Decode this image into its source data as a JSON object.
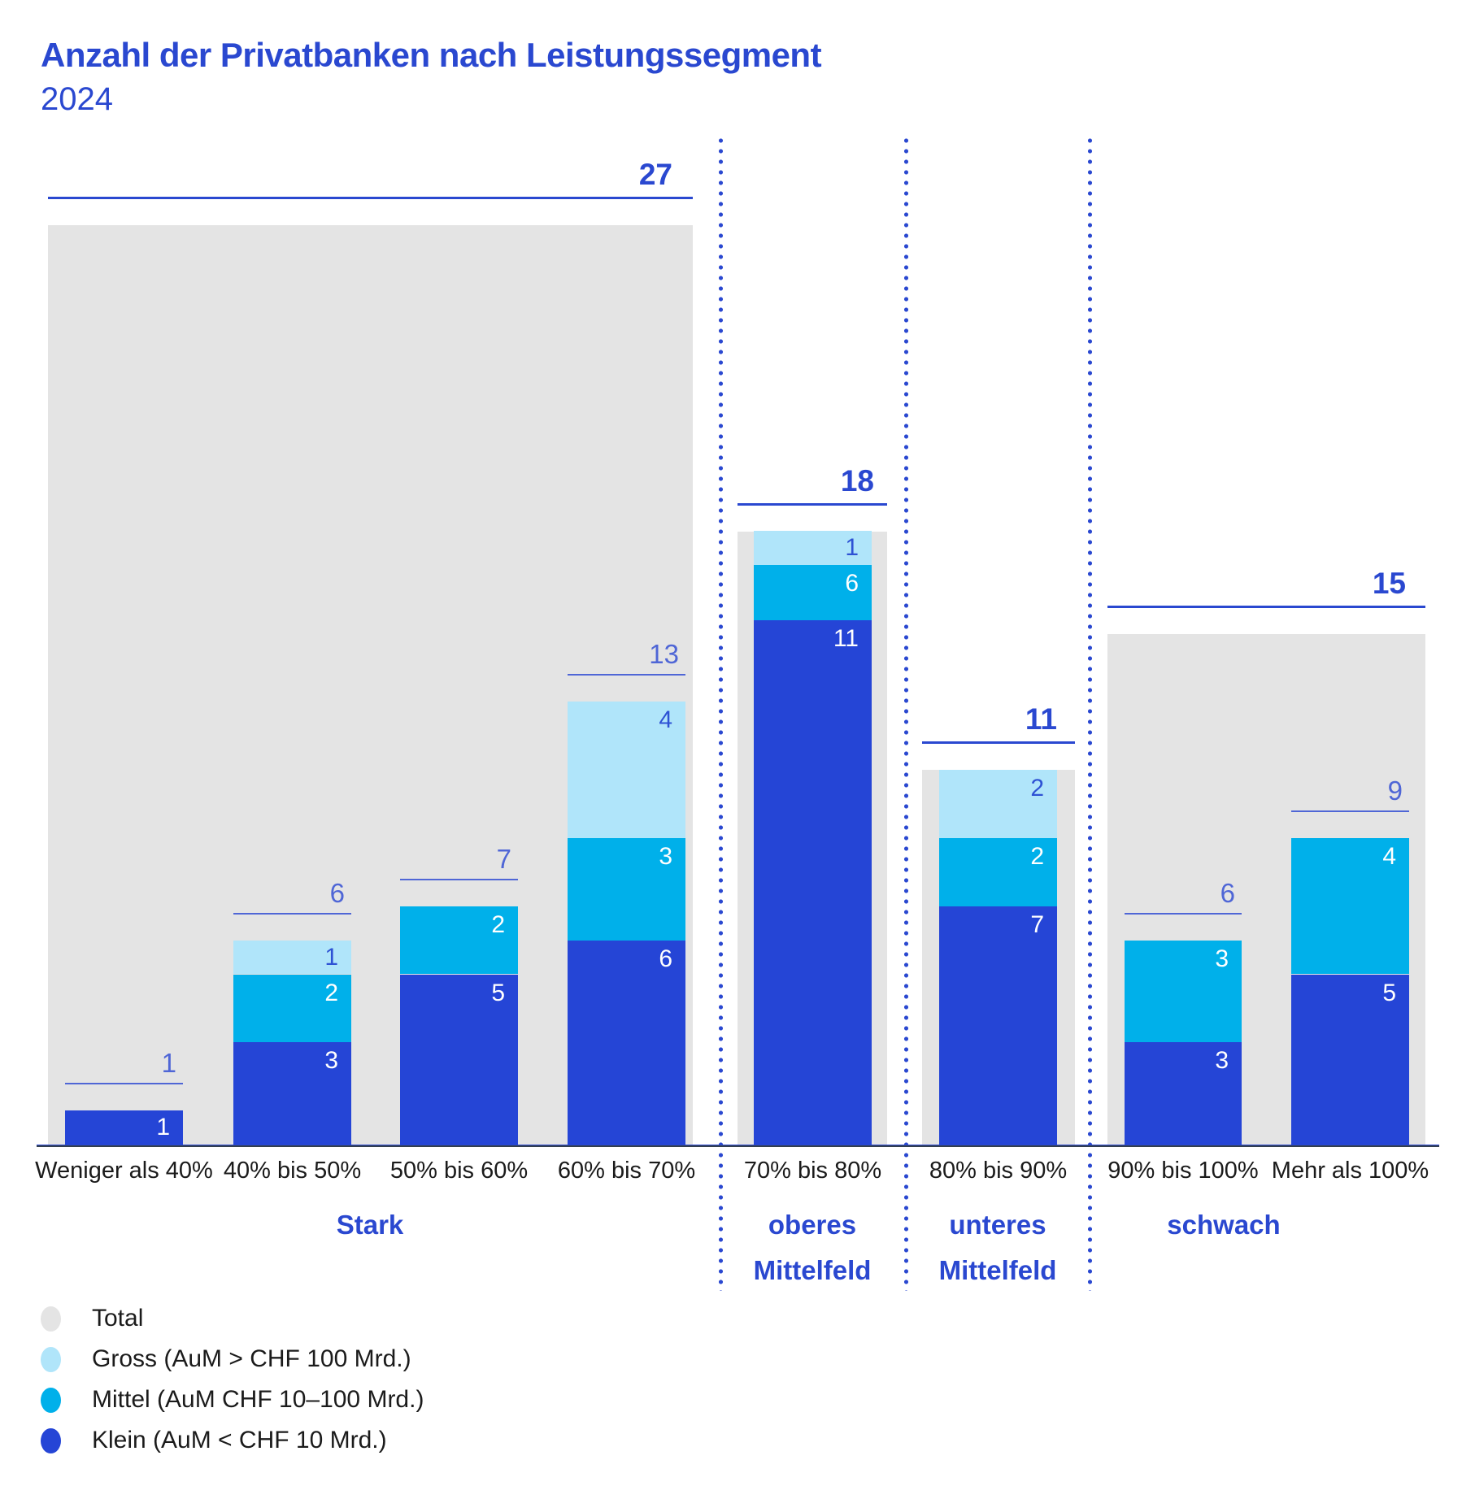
{
  "chart_data": {
    "type": "bar",
    "stacked": true,
    "title": "Anzahl der Privatbanken nach Leistungssegment",
    "subtitle": "2024",
    "categories": [
      "Weniger als 40%",
      "40% bis 50%",
      "50% bis 60%",
      "60% bis 70%",
      "70% bis 80%",
      "80% bis 90%",
      "90% bis 100%",
      "Mehr als 100%"
    ],
    "series": [
      {
        "name": "Gross (AuM > CHF 100 Mrd.)",
        "color_key": "gross_light_blue",
        "values": [
          0,
          1,
          0,
          4,
          1,
          2,
          0,
          0
        ]
      },
      {
        "name": "Mittel (AuM CHF 10–100 Mrd.)",
        "color_key": "mittel_cyan",
        "values": [
          0,
          2,
          2,
          3,
          6,
          2,
          3,
          4
        ]
      },
      {
        "name": "Klein (AuM < CHF 10 Mrd.)",
        "color_key": "klein_blue",
        "values": [
          1,
          3,
          5,
          6,
          11,
          7,
          3,
          5
        ]
      }
    ],
    "column_totals": [
      1,
      6,
      7,
      13,
      18,
      11,
      6,
      9
    ],
    "groups": [
      {
        "label_lines": [
          "Stark"
        ],
        "columns": [
          0,
          1,
          2,
          3
        ],
        "total": 27
      },
      {
        "label_lines": [
          "oberes",
          "Mittelfeld"
        ],
        "columns": [
          4
        ],
        "total": 18
      },
      {
        "label_lines": [
          "unteres",
          "Mittelfeld"
        ],
        "columns": [
          5
        ],
        "total": 11
      },
      {
        "label_lines": [
          "schwach"
        ],
        "columns": [
          6,
          7
        ],
        "total": 15
      }
    ],
    "legend": [
      {
        "label": "Total",
        "color_key": "total_gray"
      },
      {
        "label": "Gross (AuM > CHF 100 Mrd.)",
        "color_key": "gross_light_blue"
      },
      {
        "label": "Mittel (AuM CHF 10–100 Mrd.)",
        "color_key": "mittel_cyan"
      },
      {
        "label": "Klein (AuM < CHF 10 Mrd.)",
        "color_key": "klein_blue"
      }
    ],
    "ylim": [
      0,
      27
    ],
    "grid": false,
    "legend_position": "bottom-left"
  },
  "colors": {
    "total_gray": "#e4e4e4",
    "gross_light_blue": "#b0e5fa",
    "mittel_cyan": "#00b0ea",
    "klein_blue": "#2545d6",
    "accent_blue": "#2a48d0",
    "soft_blue": "#4f66d6",
    "num_on_light": "#2e52d4",
    "num_on_dark": "#ffffff",
    "axis_dark": "#333f4f",
    "text_dark": "#1b1b1b",
    "background": "#ffffff"
  }
}
